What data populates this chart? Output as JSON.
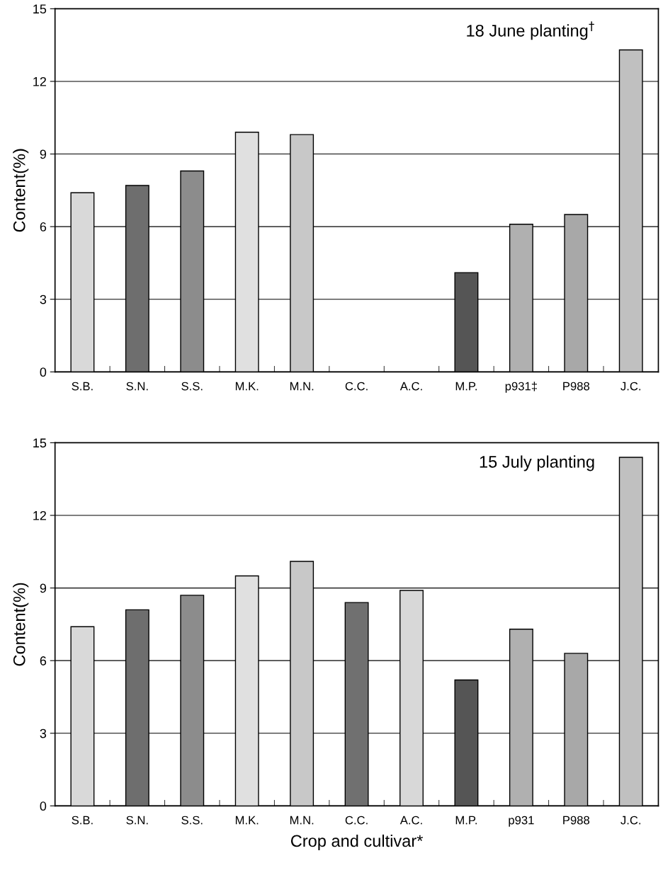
{
  "chart_data": [
    {
      "type": "bar",
      "categories": [
        "S.B.",
        "S.N.",
        "S.S.",
        "M.K.",
        "M.N.",
        "C.C.",
        "A.C.",
        "M.P.",
        "p931‡",
        "P988",
        "J.C."
      ],
      "values": [
        7.4,
        7.7,
        8.3,
        9.9,
        9.8,
        null,
        null,
        4.1,
        6.1,
        6.5,
        13.3
      ],
      "colors": [
        "#d9d9d9",
        "#6e6e6e",
        "#8c8c8c",
        "#e0e0e0",
        "#c8c8c8",
        "#707070",
        "#d8d8d8",
        "#555555",
        "#b0b0b0",
        "#a8a8a8",
        "#c0c0c0"
      ],
      "ylabel": "Content(%)",
      "ylim": [
        0,
        15
      ],
      "yticks": [
        0,
        3,
        6,
        9,
        12,
        15
      ],
      "grid": "y",
      "annotations": [
        "18 June planting$^{†}$"
      ]
    },
    {
      "type": "bar",
      "categories": [
        "S.B.",
        "S.N.",
        "S.S.",
        "M.K.",
        "M.N.",
        "C.C.",
        "A.C.",
        "M.P.",
        "p931",
        "P988",
        "J.C."
      ],
      "values": [
        7.4,
        8.1,
        8.7,
        9.5,
        10.1,
        8.4,
        8.9,
        5.2,
        7.3,
        6.3,
        14.4
      ],
      "colors": [
        "#d9d9d9",
        "#6e6e6e",
        "#8c8c8c",
        "#e0e0e0",
        "#c8c8c8",
        "#707070",
        "#d8d8d8",
        "#555555",
        "#b0b0b0",
        "#a8a8a8",
        "#c0c0c0"
      ],
      "xlabel": "Crop and cultivar*",
      "ylabel": "Content(%)",
      "ylim": [
        0,
        15
      ],
      "yticks": [
        0,
        3,
        6,
        9,
        12,
        15
      ],
      "grid": "y",
      "annotations": [
        "15 July planting"
      ]
    }
  ]
}
